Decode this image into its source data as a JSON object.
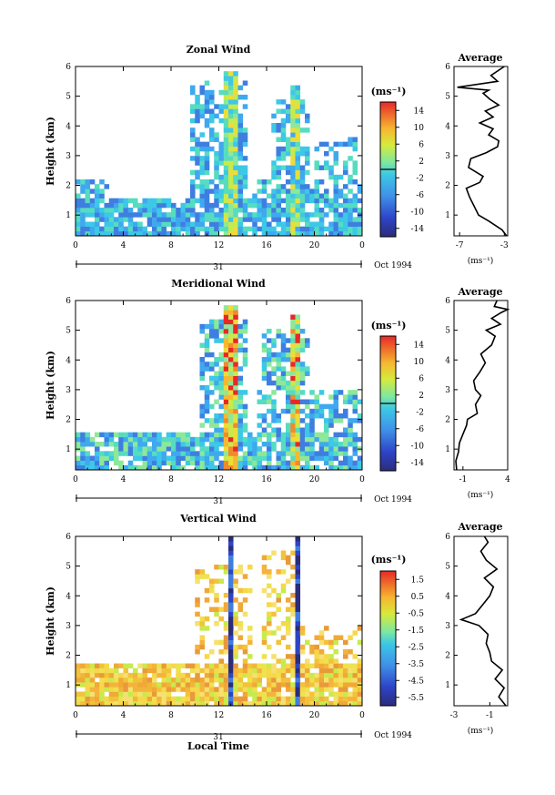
{
  "chart_data": [
    {
      "type": "heatmap",
      "title": "Zonal Wind",
      "ylabel": "Height (km)",
      "xticks": [
        "0",
        "4",
        "8",
        "12",
        "16",
        "20",
        "0"
      ],
      "yticks": [
        "1",
        "2",
        "3",
        "4",
        "5",
        "6"
      ],
      "date_label": "31",
      "month_label": "Oct 1994",
      "ylim": [
        0.3,
        6.0
      ],
      "xlim": [
        0,
        24
      ],
      "colorbar": {
        "unit": "(ms⁻¹)",
        "ticks": [
          "14",
          "10",
          "6",
          "2",
          "-2",
          "-6",
          "-10",
          "-14"
        ],
        "range": [
          -16,
          16
        ]
      },
      "profile": {
        "title": "Average",
        "xticks": [
          "-7",
          "-3"
        ],
        "xlim": [
          -7.5,
          -2.7
        ],
        "xunit": "(ms⁻¹)",
        "heights": [
          0.3,
          0.5,
          0.8,
          1.0,
          1.3,
          1.6,
          1.9,
          2.1,
          2.3,
          2.6,
          2.9,
          3.1,
          3.3,
          3.5,
          3.7,
          3.9,
          4.1,
          4.3,
          4.5,
          4.7,
          4.9,
          5.1,
          5.2,
          5.3,
          5.5,
          5.7,
          6.0
        ],
        "values": [
          -2.8,
          -3.2,
          -4.4,
          -5.3,
          -5.7,
          -6.1,
          -6.4,
          -5.2,
          -4.9,
          -6.2,
          -6.0,
          -4.6,
          -3.6,
          -3.5,
          -4.4,
          -4.0,
          -5.2,
          -4.0,
          -4.7,
          -3.5,
          -4.3,
          -4.9,
          -4.4,
          -7.2,
          -3.6,
          -4.2,
          -3.0
        ]
      }
    },
    {
      "type": "heatmap",
      "title": "Meridional Wind",
      "ylabel": "Height (km)",
      "xticks": [
        "0",
        "4",
        "8",
        "12",
        "16",
        "20",
        "0"
      ],
      "yticks": [
        "1",
        "2",
        "3",
        "4",
        "5",
        "6"
      ],
      "date_label": "31",
      "month_label": "Oct 1994",
      "ylim": [
        0.3,
        6.0
      ],
      "xlim": [
        0,
        24
      ],
      "colorbar": {
        "unit": "(ms⁻¹)",
        "ticks": [
          "14",
          "10",
          "6",
          "2",
          "-2",
          "-6",
          "-10",
          "-14"
        ],
        "range": [
          -16,
          16
        ]
      },
      "profile": {
        "title": "Average",
        "xticks": [
          "-1",
          "4"
        ],
        "xlim": [
          -2.0,
          4.0
        ],
        "xunit": "(ms⁻¹)",
        "heights": [
          0.3,
          0.6,
          0.9,
          1.2,
          1.5,
          1.8,
          2.0,
          2.2,
          2.5,
          2.8,
          3.0,
          3.3,
          3.6,
          3.9,
          4.2,
          4.5,
          4.8,
          5.0,
          5.2,
          5.4,
          5.6,
          5.7,
          5.8,
          6.0
        ],
        "values": [
          -1.7,
          -1.8,
          -1.5,
          -1.4,
          -1.0,
          -0.6,
          -0.5,
          0.6,
          0.4,
          1.0,
          0.4,
          0.2,
          0.9,
          1.5,
          1.0,
          2.2,
          2.6,
          1.6,
          3.2,
          2.2,
          3.3,
          4.0,
          2.5,
          2.8
        ]
      }
    },
    {
      "type": "heatmap",
      "title": "Vertical Wind",
      "ylabel": "Height (km)",
      "xlabel": "Local Time",
      "xticks": [
        "0",
        "4",
        "8",
        "12",
        "16",
        "20",
        "0"
      ],
      "yticks": [
        "1",
        "2",
        "3",
        "4",
        "5",
        "6"
      ],
      "date_label": "31",
      "month_label": "Oct 1994",
      "ylim": [
        0.3,
        6.0
      ],
      "xlim": [
        0,
        24
      ],
      "colorbar": {
        "unit": "(ms⁻¹)",
        "ticks": [
          "1.5",
          "0.5",
          "-0.5",
          "-1.5",
          "-2.5",
          "-3.5",
          "-4.5",
          "-5.5"
        ],
        "range": [
          -6,
          2
        ]
      },
      "profile": {
        "title": "Average",
        "xticks": [
          "-3",
          "-1"
        ],
        "xlim": [
          -3.0,
          0.0
        ],
        "xunit": "(ms⁻¹)",
        "heights": [
          0.3,
          0.6,
          0.9,
          1.2,
          1.5,
          1.8,
          2.1,
          2.4,
          2.7,
          3.0,
          3.2,
          3.4,
          3.7,
          4.0,
          4.3,
          4.6,
          4.9,
          5.2,
          5.5,
          5.8,
          6.0
        ],
        "values": [
          -0.1,
          -0.5,
          -0.2,
          -0.7,
          -0.3,
          -0.9,
          -1.0,
          -1.2,
          -1.1,
          -1.6,
          -2.6,
          -1.8,
          -1.4,
          -1.0,
          -0.8,
          -1.3,
          -0.6,
          -1.2,
          -1.5,
          -1.1,
          -1.3
        ]
      }
    }
  ]
}
